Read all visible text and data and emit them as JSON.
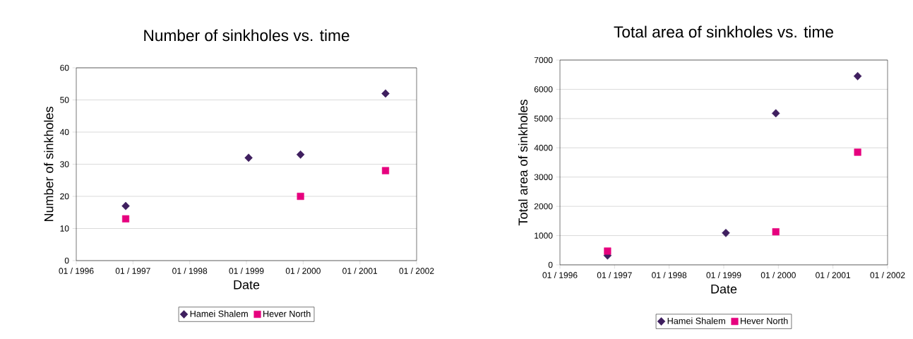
{
  "chart_data": [
    {
      "type": "scatter",
      "title": "Number of sinkholes vs. time",
      "xlabel": "Date",
      "ylabel": "Number of sinkholes",
      "x": [
        "1996-11-15",
        "1999-01-15",
        "1999-12-15",
        "2001-06-15"
      ],
      "series": [
        {
          "name": "Hamei Shalem",
          "color": "#3f1f5f",
          "marker": "diamond",
          "values": [
            17,
            32,
            33,
            52
          ]
        },
        {
          "name": "Hever North",
          "color": "#e6007e",
          "marker": "square",
          "values": [
            13,
            null,
            20,
            28
          ]
        }
      ],
      "xlim": [
        "1996-01",
        "2002-01"
      ],
      "xticks": [
        {
          "value": "1996-01",
          "label": "01 / 1996"
        },
        {
          "value": "1997-01",
          "label": "01 / 1997"
        },
        {
          "value": "1998-01",
          "label": "01 / 1998"
        },
        {
          "value": "1999-01",
          "label": "01 / 1999"
        },
        {
          "value": "2000-01",
          "label": "01 / 2000"
        },
        {
          "value": "2001-01",
          "label": "01 / 2001"
        },
        {
          "value": "2002-01",
          "label": "01 / 2002"
        }
      ],
      "ylim": [
        0,
        60
      ],
      "yticks": [
        0,
        10,
        20,
        30,
        40,
        50,
        60
      ],
      "grid": "y",
      "legend": "bottom"
    },
    {
      "type": "scatter",
      "title": "Total area of sinkholes vs. time",
      "xlabel": "Date",
      "ylabel": "Total area of sinkholes",
      "x": [
        "1996-11-15",
        "1999-01-15",
        "1999-12-15",
        "2001-06-15"
      ],
      "series": [
        {
          "name": "Hamei Shalem",
          "color": "#3f1f5f",
          "marker": "diamond",
          "values": [
            320,
            1090,
            5180,
            6450
          ]
        },
        {
          "name": "Hever North",
          "color": "#e6007e",
          "marker": "square",
          "values": [
            470,
            null,
            1130,
            3850
          ]
        }
      ],
      "xlim": [
        "1996-01",
        "2002-01"
      ],
      "xticks": [
        {
          "value": "1996-01",
          "label": "01 / 1996"
        },
        {
          "value": "1997-01",
          "label": "01 / 1997"
        },
        {
          "value": "1998-01",
          "label": "01 / 1998"
        },
        {
          "value": "1999-01",
          "label": "01 / 1999"
        },
        {
          "value": "2000-01",
          "label": "01 / 2000"
        },
        {
          "value": "2001-01",
          "label": "01 / 2001"
        },
        {
          "value": "2002-01",
          "label": "01 / 2002"
        }
      ],
      "ylim": [
        0,
        7000
      ],
      "yticks": [
        0,
        1000,
        2000,
        3000,
        4000,
        5000,
        6000,
        7000
      ],
      "grid": "y",
      "legend": "bottom"
    }
  ]
}
